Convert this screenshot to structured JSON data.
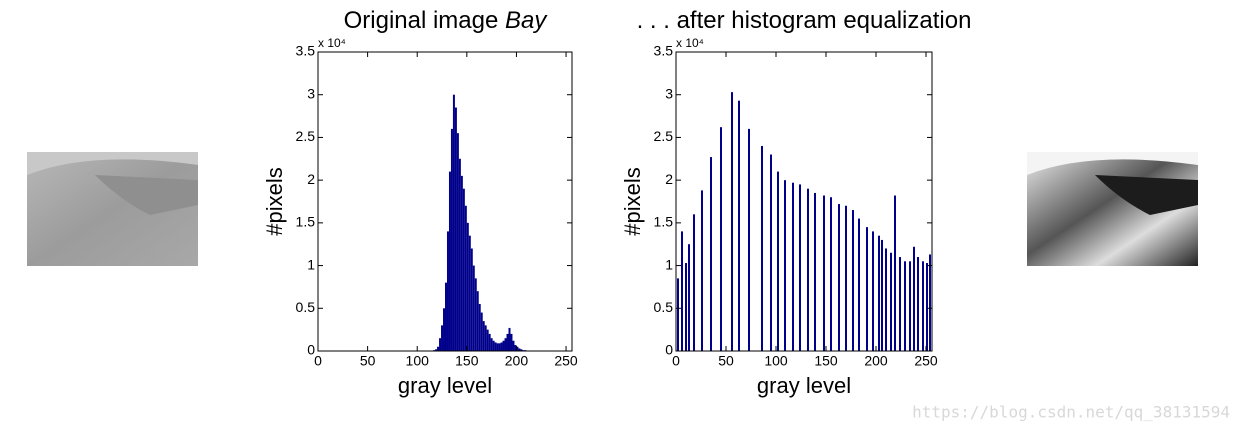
{
  "chart_data": [
    {
      "type": "histogram",
      "title": "Original image",
      "title_emphasis": "Bay",
      "x_label": "gray level",
      "y_label": "#pixels",
      "y_multiplier": "x 10⁴",
      "color": "#00008b",
      "bins": [
        116,
        118,
        120,
        122,
        124,
        126,
        128,
        130,
        132,
        134,
        136,
        138,
        140,
        142,
        144,
        146,
        148,
        150,
        152,
        154,
        156,
        158,
        160,
        162,
        164,
        166,
        168,
        170,
        172,
        174,
        176,
        178,
        180,
        182,
        184,
        186,
        188,
        190,
        192,
        194,
        196,
        198,
        200,
        202,
        204,
        206,
        208,
        210,
        212
      ],
      "values": [
        0.01,
        0.02,
        0.05,
        0.15,
        0.3,
        0.5,
        0.8,
        1.4,
        2.1,
        2.6,
        3.0,
        2.85,
        2.55,
        2.25,
        2.05,
        1.9,
        1.7,
        1.5,
        1.35,
        1.2,
        1.0,
        0.85,
        0.7,
        0.55,
        0.45,
        0.35,
        0.3,
        0.25,
        0.2,
        0.15,
        0.12,
        0.1,
        0.09,
        0.09,
        0.1,
        0.12,
        0.15,
        0.2,
        0.27,
        0.2,
        0.12,
        0.07,
        0.05,
        0.03,
        0.02,
        0.01,
        0.01,
        0.005
      ],
      "xlim": [
        0,
        256
      ],
      "xticks": [
        0,
        50,
        100,
        150,
        200,
        250
      ],
      "ylim": [
        0,
        3.5
      ],
      "yticks": [
        0,
        0.5,
        1,
        1.5,
        2,
        2.5,
        3,
        3.5
      ]
    },
    {
      "type": "bar",
      "title": ". . . after histogram equalization",
      "x_label": "gray level",
      "y_label": "#pixels",
      "y_multiplier": "x 10⁴",
      "color": "#00008b",
      "x": [
        2,
        6,
        10,
        13,
        18,
        26,
        35,
        45,
        56,
        63,
        73,
        86,
        95,
        102,
        109,
        117,
        124,
        132,
        139,
        148,
        155,
        163,
        170,
        177,
        183,
        191,
        197,
        203,
        206,
        210,
        215,
        219,
        224,
        229,
        234,
        238,
        242,
        247,
        251,
        254
      ],
      "values": [
        0.85,
        1.4,
        1.03,
        1.25,
        1.6,
        1.88,
        2.27,
        2.62,
        3.03,
        2.93,
        2.6,
        2.4,
        2.3,
        2.1,
        2.0,
        1.97,
        1.95,
        1.9,
        1.85,
        1.82,
        1.8,
        1.72,
        1.7,
        1.65,
        1.55,
        1.45,
        1.4,
        1.35,
        1.3,
        1.2,
        1.15,
        1.82,
        1.1,
        1.05,
        1.05,
        1.22,
        1.1,
        1.05,
        1.03,
        1.13
      ],
      "xlim": [
        0,
        256
      ],
      "xticks": [
        0,
        50,
        100,
        150,
        200,
        250
      ],
      "ylim": [
        0,
        3.5
      ],
      "yticks": [
        0,
        0.5,
        1,
        1.5,
        2,
        2.5,
        3,
        3.5
      ]
    }
  ],
  "watermark": "https://blog.csdn.net/qq_38131594"
}
